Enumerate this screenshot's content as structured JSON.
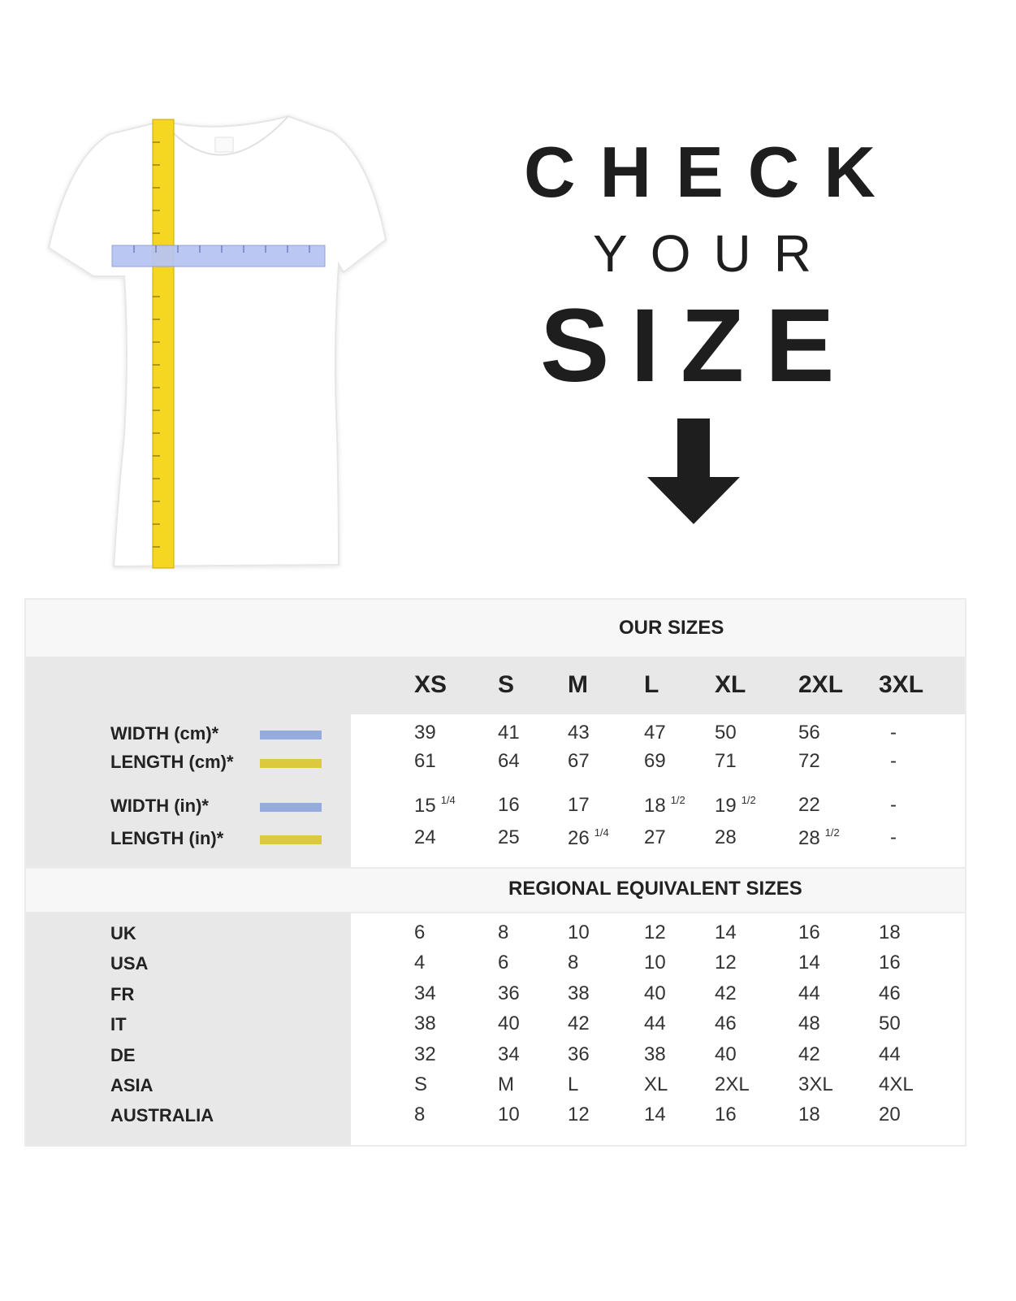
{
  "hero": {
    "line1": "CHECK",
    "line2": "YOUR",
    "line3": "SIZE"
  },
  "colors": {
    "width_swatch": "#95aadd",
    "length_swatch": "#ddc93e",
    "text": "#1e1e1e",
    "band_light": "#f7f7f7",
    "band_gray": "#e8e8e8"
  },
  "table": {
    "our_sizes_title": "OUR SIZES",
    "sizes": [
      "XS",
      "S",
      "M",
      "L",
      "XL",
      "2XL",
      "3XL"
    ],
    "measurements": [
      {
        "label": "WIDTH (cm)*",
        "swatch": "width",
        "values": [
          {
            "v": "39"
          },
          {
            "v": "41"
          },
          {
            "v": "43"
          },
          {
            "v": "47"
          },
          {
            "v": "50"
          },
          {
            "v": "56"
          },
          {
            "v": "-"
          }
        ]
      },
      {
        "label": "LENGTH (cm)*",
        "swatch": "length",
        "values": [
          {
            "v": "61"
          },
          {
            "v": "64"
          },
          {
            "v": "67"
          },
          {
            "v": "69"
          },
          {
            "v": "71"
          },
          {
            "v": "72"
          },
          {
            "v": "-"
          }
        ]
      },
      {
        "label": "WIDTH (in)*",
        "swatch": "width",
        "values": [
          {
            "v": "15",
            "frac": "1/4"
          },
          {
            "v": "16"
          },
          {
            "v": "17"
          },
          {
            "v": "18",
            "frac": "1/2"
          },
          {
            "v": "19",
            "frac": "1/2"
          },
          {
            "v": "22"
          },
          {
            "v": "-"
          }
        ]
      },
      {
        "label": "LENGTH (in)*",
        "swatch": "length",
        "values": [
          {
            "v": "24"
          },
          {
            "v": "25"
          },
          {
            "v": "26",
            "frac": "1/4"
          },
          {
            "v": "27"
          },
          {
            "v": "28"
          },
          {
            "v": "28",
            "frac": "1/2"
          },
          {
            "v": "-"
          }
        ]
      }
    ],
    "regional_title": "REGIONAL EQUIVALENT SIZES",
    "regional": [
      {
        "label": "UK",
        "values": [
          "6",
          "8",
          "10",
          "12",
          "14",
          "16",
          "18"
        ]
      },
      {
        "label": "USA",
        "values": [
          "4",
          "6",
          "8",
          "10",
          "12",
          "14",
          "16"
        ]
      },
      {
        "label": "FR",
        "values": [
          "34",
          "36",
          "38",
          "40",
          "42",
          "44",
          "46"
        ]
      },
      {
        "label": "IT",
        "values": [
          "38",
          "40",
          "42",
          "44",
          "46",
          "48",
          "50"
        ]
      },
      {
        "label": "DE",
        "values": [
          "32",
          "34",
          "36",
          "38",
          "40",
          "42",
          "44"
        ]
      },
      {
        "label": "ASIA",
        "values": [
          "S",
          "M",
          "L",
          "XL",
          "2XL",
          "3XL",
          "4XL"
        ]
      },
      {
        "label": "AUSTRALIA",
        "values": [
          "8",
          "10",
          "12",
          "14",
          "16",
          "18",
          "20"
        ]
      }
    ]
  }
}
